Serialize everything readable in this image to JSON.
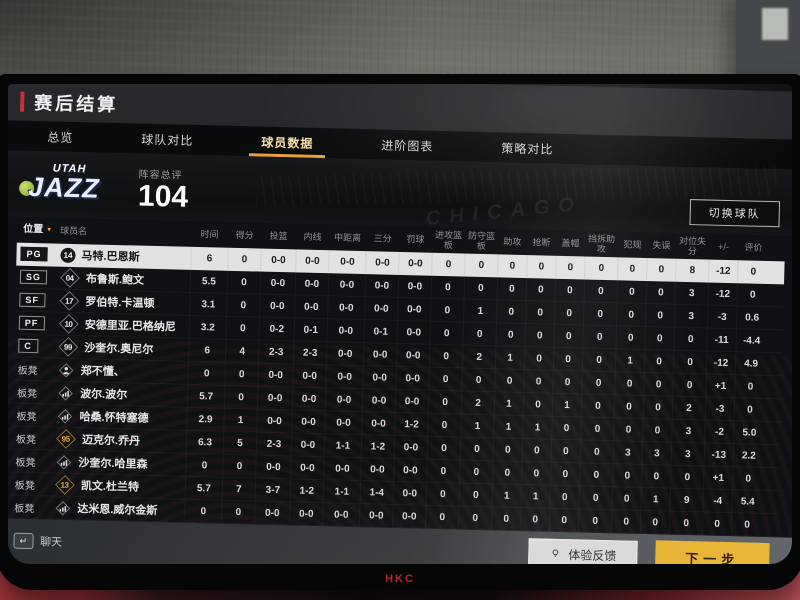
{
  "window": {
    "title": "赛后结算"
  },
  "monitor": {
    "brand": "HKC"
  },
  "tabs": [
    {
      "label": "总览",
      "active": false
    },
    {
      "label": "球队对比",
      "active": false
    },
    {
      "label": "球员数据",
      "active": true
    },
    {
      "label": "进阶图表",
      "active": false
    },
    {
      "label": "策略对比",
      "active": false
    }
  ],
  "team": {
    "logo_top": "UTAH",
    "logo_main": "JAZZ",
    "rating_label": "阵容总评",
    "rating_value": "104",
    "switch_button": "切换球队",
    "arena_watermark": "CHICAGO"
  },
  "table": {
    "headers": [
      "位置",
      "球员名",
      "时间",
      "得分",
      "投篮",
      "内线",
      "中距离",
      "三分",
      "罚球",
      "进攻篮板",
      "防守篮板",
      "助攻",
      "抢断",
      "盖帽",
      "挡拆助攻",
      "犯规",
      "失误",
      "对位失分",
      "+/-",
      "评价"
    ],
    "rows": [
      {
        "pos": "PG",
        "pos_type": "starter",
        "num": "14",
        "num_type": "dark",
        "name": "马特.巴恩斯",
        "selected": true,
        "stats": [
          "6",
          "0",
          "0-0",
          "0-0",
          "0-0",
          "0-0",
          "0-0",
          "0",
          "0",
          "0",
          "0",
          "0",
          "0",
          "0",
          "0",
          "8",
          "-12",
          "0"
        ]
      },
      {
        "pos": "SG",
        "pos_type": "starter",
        "num": "04",
        "num_type": "white",
        "name": "布鲁斯.鲍文",
        "stats": [
          "5.5",
          "0",
          "0-0",
          "0-0",
          "0-0",
          "0-0",
          "0-0",
          "0",
          "0",
          "0",
          "0",
          "0",
          "0",
          "0",
          "0",
          "3",
          "-12",
          "0"
        ]
      },
      {
        "pos": "SF",
        "pos_type": "starter",
        "num": "17",
        "num_type": "white",
        "name": "罗伯特.卡温顿",
        "stats": [
          "3.1",
          "0",
          "0-0",
          "0-0",
          "0-0",
          "0-0",
          "0-0",
          "0",
          "1",
          "0",
          "0",
          "0",
          "0",
          "0",
          "0",
          "3",
          "-3",
          "0.6"
        ]
      },
      {
        "pos": "PF",
        "pos_type": "starter",
        "num": "10",
        "num_type": "white",
        "name": "安德里亚.巴格纳尼",
        "stats": [
          "3.2",
          "0",
          "0-2",
          "0-1",
          "0-0",
          "0-1",
          "0-0",
          "0",
          "0",
          "0",
          "0",
          "0",
          "0",
          "0",
          "0",
          "0",
          "-11",
          "-4.4"
        ]
      },
      {
        "pos": "C",
        "pos_type": "starter",
        "num": "99",
        "num_type": "white",
        "name": "沙奎尔.奥尼尔",
        "stats": [
          "6",
          "4",
          "2-3",
          "2-3",
          "0-0",
          "0-0",
          "0-0",
          "0",
          "2",
          "1",
          "0",
          "0",
          "0",
          "1",
          "0",
          "0",
          "-12",
          "4.9"
        ]
      },
      {
        "pos": "板凳",
        "pos_type": "bench",
        "icon": "person",
        "name": "郑不懂、",
        "stats": [
          "0",
          "0",
          "0-0",
          "0-0",
          "0-0",
          "0-0",
          "0-0",
          "0",
          "0",
          "0",
          "0",
          "0",
          "0",
          "0",
          "0",
          "0",
          "+1",
          "0"
        ]
      },
      {
        "pos": "板凳",
        "pos_type": "bench",
        "icon": "bars",
        "name": "波尔.波尔",
        "stats": [
          "5.7",
          "0",
          "0-0",
          "0-0",
          "0-0",
          "0-0",
          "0-0",
          "0",
          "2",
          "1",
          "0",
          "1",
          "0",
          "0",
          "0",
          "2",
          "-3",
          "0"
        ]
      },
      {
        "pos": "板凳",
        "pos_type": "bench",
        "icon": "bars",
        "name": "哈桑.怀特塞德",
        "stats": [
          "2.9",
          "1",
          "0-0",
          "0-0",
          "0-0",
          "0-0",
          "1-2",
          "0",
          "1",
          "1",
          "1",
          "0",
          "0",
          "0",
          "0",
          "3",
          "-2",
          "5.0"
        ]
      },
      {
        "pos": "板凳",
        "pos_type": "bench",
        "num": "95",
        "num_type": "gold",
        "name": "迈克尔.乔丹",
        "stats": [
          "6.3",
          "5",
          "2-3",
          "0-0",
          "1-1",
          "1-2",
          "0-0",
          "0",
          "0",
          "0",
          "0",
          "0",
          "0",
          "3",
          "3",
          "3",
          "-13",
          "2.2"
        ]
      },
      {
        "pos": "板凳",
        "pos_type": "bench",
        "icon": "bars",
        "name": "沙奎尔.哈里森",
        "stats": [
          "0",
          "0",
          "0-0",
          "0-0",
          "0-0",
          "0-0",
          "0-0",
          "0",
          "0",
          "0",
          "0",
          "0",
          "0",
          "0",
          "0",
          "0",
          "+1",
          "0"
        ]
      },
      {
        "pos": "板凳",
        "pos_type": "bench",
        "num": "13",
        "num_type": "gold",
        "name": "凯文.杜兰特",
        "stats": [
          "5.7",
          "7",
          "3-7",
          "1-2",
          "1-1",
          "1-4",
          "0-0",
          "0",
          "0",
          "1",
          "1",
          "0",
          "0",
          "0",
          "1",
          "9",
          "-4",
          "5.4"
        ]
      },
      {
        "pos": "板凳",
        "pos_type": "bench",
        "icon": "bars",
        "name": "达米恩.威尔金斯",
        "stats": [
          "0",
          "0",
          "0-0",
          "0-0",
          "0-0",
          "0-0",
          "0-0",
          "0",
          "0",
          "0",
          "0",
          "0",
          "0",
          "0",
          "0",
          "0",
          "0",
          "0"
        ]
      }
    ]
  },
  "footer": {
    "chat_label": "聊天",
    "feedback_label": "体验反馈",
    "next_label": "下一步"
  },
  "colors": {
    "accent_red": "#c2303a",
    "tab_highlight": "#e8a33d",
    "button_yellow": "#e9b636",
    "gold_number": "#e7b33f",
    "selected_row": "#e2e2e2",
    "brand_red": "#b3272e"
  }
}
